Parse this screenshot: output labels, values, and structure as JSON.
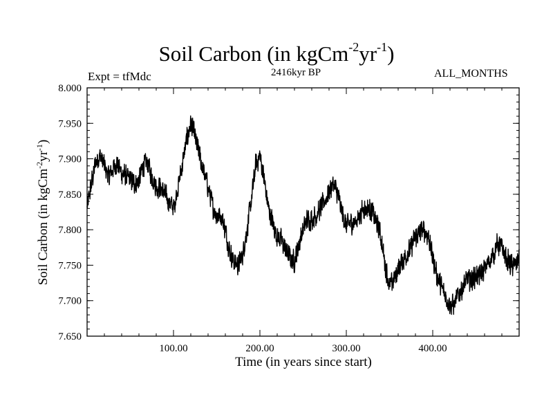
{
  "chart_data": {
    "type": "line",
    "title": {
      "main": "Soil Carbon (in kgCm",
      "exp1": "-2",
      "mid": "yr",
      "exp2": "-1",
      "end": ")"
    },
    "subtitle_center": "2416kyr BP",
    "subtitle_left": "Expt = tfMdc",
    "subtitle_right": "ALL_MONTHS",
    "xlabel": "Time (in years since start)",
    "ylabel": {
      "main": "Soil Carbon (in kgCm",
      "exp1": "-2",
      "mid": "yr",
      "exp2": "-1",
      "end": ")"
    },
    "xlim": [
      0,
      500
    ],
    "ylim": [
      7.65,
      8.0
    ],
    "xticks": [
      100,
      200,
      300,
      400
    ],
    "xtick_labels": [
      "100.00",
      "200.00",
      "300.00",
      "400.00"
    ],
    "yticks": [
      7.65,
      7.7,
      7.75,
      7.8,
      7.85,
      7.9,
      7.95,
      8.0
    ],
    "ytick_labels": [
      "7.650",
      "7.700",
      "7.750",
      "7.800",
      "7.850",
      "7.900",
      "7.950",
      "8.000"
    ],
    "series": [
      {
        "name": "Soil Carbon",
        "color": "#000000",
        "x": [
          0,
          5,
          10,
          15,
          20,
          25,
          30,
          35,
          40,
          45,
          50,
          55,
          60,
          65,
          70,
          75,
          80,
          85,
          90,
          95,
          100,
          105,
          110,
          115,
          120,
          125,
          130,
          135,
          140,
          145,
          150,
          155,
          160,
          165,
          170,
          175,
          180,
          185,
          190,
          195,
          200,
          205,
          210,
          215,
          220,
          225,
          230,
          235,
          240,
          245,
          250,
          255,
          260,
          265,
          270,
          275,
          280,
          285,
          290,
          295,
          300,
          305,
          310,
          315,
          320,
          325,
          330,
          335,
          340,
          345,
          350,
          355,
          360,
          365,
          370,
          375,
          380,
          385,
          390,
          395,
          400,
          405,
          410,
          415,
          420,
          425,
          430,
          435,
          440,
          445,
          450,
          455,
          460,
          465,
          470,
          475,
          480,
          485,
          490,
          495,
          500
        ],
        "y": [
          7.83,
          7.865,
          7.895,
          7.905,
          7.89,
          7.875,
          7.885,
          7.895,
          7.88,
          7.875,
          7.87,
          7.865,
          7.87,
          7.89,
          7.895,
          7.875,
          7.86,
          7.86,
          7.85,
          7.84,
          7.83,
          7.86,
          7.89,
          7.925,
          7.95,
          7.93,
          7.905,
          7.88,
          7.86,
          7.835,
          7.82,
          7.82,
          7.8,
          7.77,
          7.755,
          7.75,
          7.765,
          7.8,
          7.84,
          7.89,
          7.905,
          7.87,
          7.83,
          7.81,
          7.79,
          7.785,
          7.77,
          7.76,
          7.755,
          7.78,
          7.8,
          7.815,
          7.815,
          7.82,
          7.83,
          7.84,
          7.855,
          7.865,
          7.85,
          7.825,
          7.805,
          7.81,
          7.81,
          7.82,
          7.83,
          7.83,
          7.825,
          7.81,
          7.79,
          7.75,
          7.72,
          7.73,
          7.745,
          7.755,
          7.765,
          7.775,
          7.79,
          7.795,
          7.8,
          7.79,
          7.76,
          7.735,
          7.72,
          7.705,
          7.695,
          7.695,
          7.71,
          7.72,
          7.73,
          7.73,
          7.735,
          7.735,
          7.745,
          7.755,
          7.765,
          7.78,
          7.775,
          7.76,
          7.75,
          7.75,
          7.76
        ]
      }
    ],
    "noise_amplitude": 0.018
  }
}
